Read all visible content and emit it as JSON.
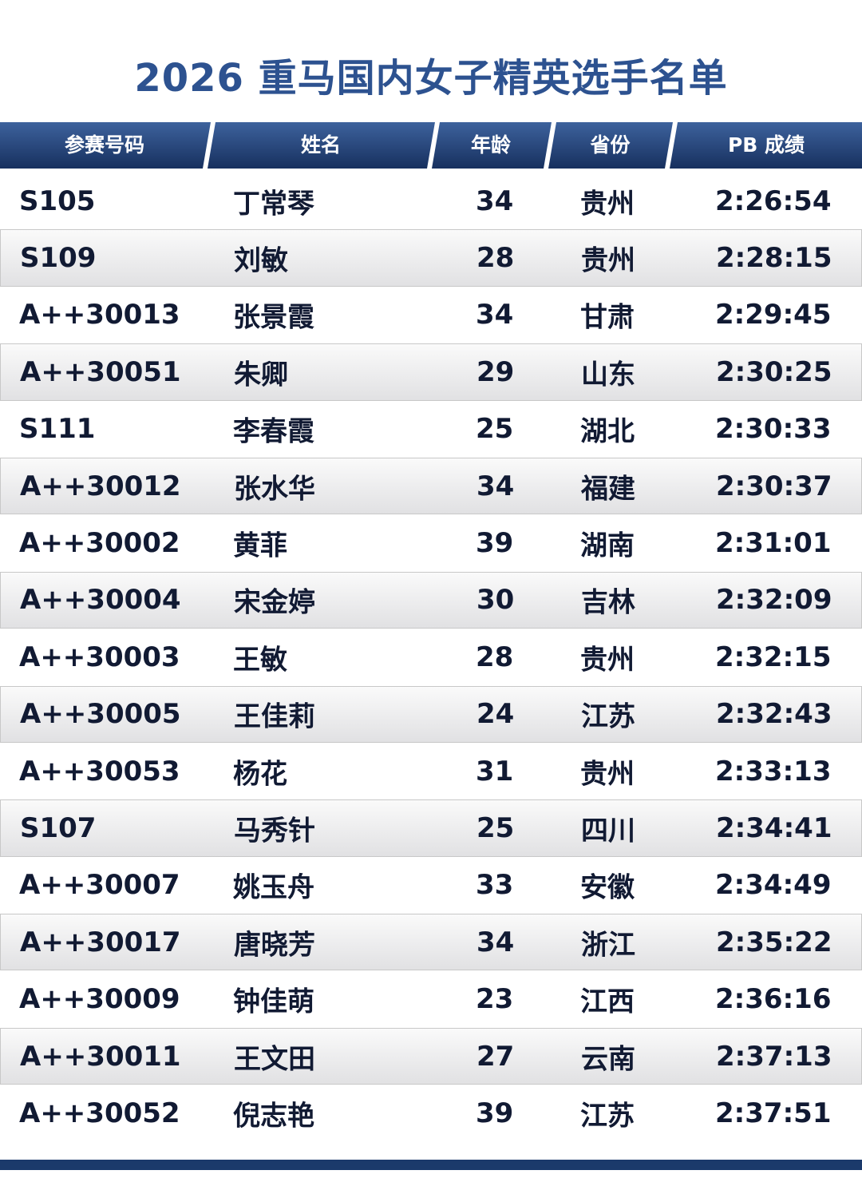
{
  "title": "2026 重马国内女子精英选手名单",
  "colors": {
    "title": "#2d5290",
    "header": "#1f3d70",
    "bottom_bar": "#1b3a6b"
  },
  "columns": [
    "参赛号码",
    "姓名",
    "年龄",
    "省份",
    "PB 成绩"
  ],
  "rows": [
    [
      "S105",
      "丁常琴",
      "34",
      "贵州",
      "2:26:54"
    ],
    [
      "S109",
      "刘敏",
      "28",
      "贵州",
      "2:28:15"
    ],
    [
      "A++30013",
      "张景霞",
      "34",
      "甘肃",
      "2:29:45"
    ],
    [
      "A++30051",
      "朱卿",
      "29",
      "山东",
      "2:30:25"
    ],
    [
      "S111",
      "李春霞",
      "25",
      "湖北",
      "2:30:33"
    ],
    [
      "A++30012",
      "张水华",
      "34",
      "福建",
      "2:30:37"
    ],
    [
      "A++30002",
      "黄菲",
      "39",
      "湖南",
      "2:31:01"
    ],
    [
      "A++30004",
      "宋金婷",
      "30",
      "吉林",
      "2:32:09"
    ],
    [
      "A++30003",
      "王敏",
      "28",
      "贵州",
      "2:32:15"
    ],
    [
      "A++30005",
      "王佳莉",
      "24",
      "江苏",
      "2:32:43"
    ],
    [
      "A++30053",
      "杨花",
      "31",
      "贵州",
      "2:33:13"
    ],
    [
      "S107",
      "马秀针",
      "25",
      "四川",
      "2:34:41"
    ],
    [
      "A++30007",
      "姚玉舟",
      "33",
      "安徽",
      "2:34:49"
    ],
    [
      "A++30017",
      "唐晓芳",
      "34",
      "浙江",
      "2:35:22"
    ],
    [
      "A++30009",
      "钟佳萌",
      "23",
      "江西",
      "2:36:16"
    ],
    [
      "A++30011",
      "王文田",
      "27",
      "云南",
      "2:37:13"
    ],
    [
      "A++30052",
      "倪志艳",
      "39",
      "江苏",
      "2:37:51"
    ]
  ]
}
